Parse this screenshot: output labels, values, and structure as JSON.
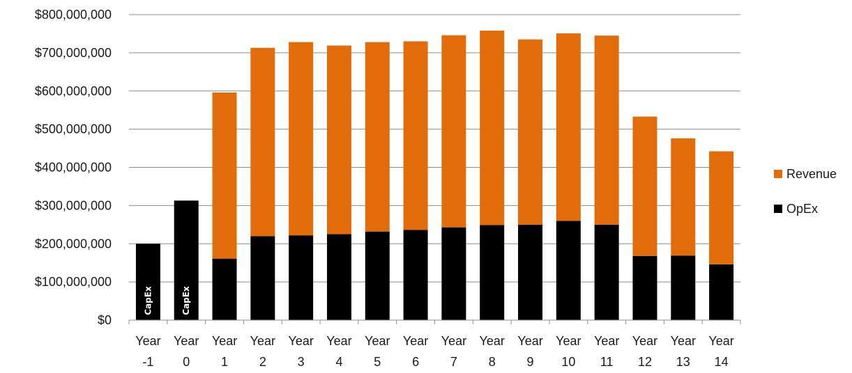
{
  "chart_data": {
    "type": "bar",
    "stacked": true,
    "categories": [
      [
        "Year",
        "-1"
      ],
      [
        "Year",
        "0"
      ],
      [
        "Year",
        "1"
      ],
      [
        "Year",
        "2"
      ],
      [
        "Year",
        "3"
      ],
      [
        "Year",
        "4"
      ],
      [
        "Year",
        "5"
      ],
      [
        "Year",
        "6"
      ],
      [
        "Year",
        "7"
      ],
      [
        "Year",
        "8"
      ],
      [
        "Year",
        "9"
      ],
      [
        "Year",
        "10"
      ],
      [
        "Year",
        "11"
      ],
      [
        "Year",
        "12"
      ],
      [
        "Year",
        "13"
      ],
      [
        "Year",
        "14"
      ]
    ],
    "series": [
      {
        "name": "OpEx",
        "color": "#000000",
        "values": [
          200000000,
          313000000,
          161000000,
          220000000,
          222000000,
          225000000,
          232000000,
          236000000,
          243000000,
          249000000,
          250000000,
          260000000,
          250000000,
          168000000,
          169000000,
          146000000
        ]
      },
      {
        "name": "Revenue",
        "color": "#e36c0a",
        "values": [
          0,
          0,
          435000000,
          493000000,
          506000000,
          494000000,
          496000000,
          494000000,
          503000000,
          509000000,
          485000000,
          491000000,
          495000000,
          365000000,
          307000000,
          296000000
        ]
      }
    ],
    "bar_labels": [
      "CapEx",
      "CapEx",
      "",
      "",
      "",
      "",
      "",
      "",
      "",
      "",
      "",
      "",
      "",
      "",
      "",
      ""
    ],
    "yticks": [
      "$0",
      "$100,000,000",
      "$200,000,000",
      "$300,000,000",
      "$400,000,000",
      "$500,000,000",
      "$600,000,000",
      "$700,000,000",
      "$800,000,000"
    ],
    "ylim": [
      0,
      800000000
    ],
    "ystep": 100000000,
    "title": "",
    "xlabel": "",
    "ylabel": "",
    "grid": true,
    "gridColor": "#8c8c8c",
    "legend": {
      "position": "right",
      "order": [
        "Revenue",
        "OpEx"
      ]
    }
  }
}
